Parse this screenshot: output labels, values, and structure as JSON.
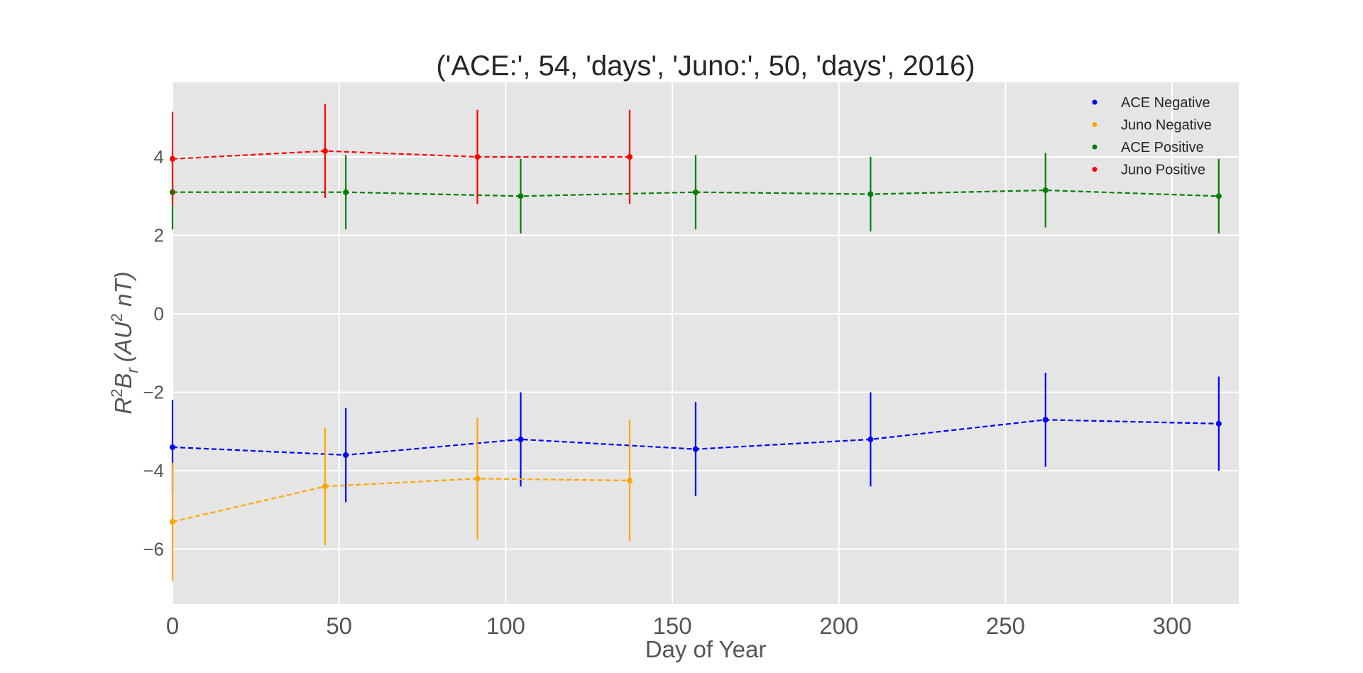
{
  "chart_data": {
    "type": "line",
    "title": "('ACE:', 54, 'days', 'Juno:', 50, 'days', 2016)",
    "xlabel": "Day of Year",
    "ylabel": "R²Bᵣ (AU² nT)",
    "ylabel_parts": {
      "r": "R",
      "b": "B",
      "sub": "r",
      "open": "(AU",
      "close": " nT)",
      "sup": "2"
    },
    "xlim": [
      0,
      320
    ],
    "ylim": [
      -7.4,
      5.9
    ],
    "x_ticks": [
      0,
      50,
      100,
      150,
      200,
      250,
      300
    ],
    "x_tick_labels": [
      "0",
      "50",
      "100",
      "150",
      "200",
      "250",
      "300"
    ],
    "y_ticks": [
      -6,
      -4,
      -2,
      0,
      2,
      4
    ],
    "y_tick_labels": [
      "−6",
      "−4",
      "−2",
      "0",
      "2",
      "4"
    ],
    "grid": true,
    "legend_position": "top-right",
    "series": [
      {
        "name": "ACE Negative",
        "color": "#0000ff",
        "x": [
          0,
          52,
          104.5,
          157,
          209.5,
          262,
          314
        ],
        "y": [
          -3.4,
          -3.6,
          -3.2,
          -3.45,
          -3.2,
          -2.7,
          -2.8
        ],
        "err": [
          1.2,
          1.2,
          1.2,
          1.2,
          1.2,
          1.2,
          1.2
        ]
      },
      {
        "name": "Juno Negative",
        "color": "#ffa500",
        "x": [
          0,
          45.8,
          91.5,
          137.2
        ],
        "y": [
          -5.3,
          -4.4,
          -4.2,
          -4.25
        ],
        "err": [
          1.5,
          1.5,
          1.55,
          1.55
        ]
      },
      {
        "name": "ACE Positive",
        "color": "#008000",
        "x": [
          0,
          52,
          104.5,
          157,
          209.5,
          262,
          314
        ],
        "y": [
          3.1,
          3.1,
          3.0,
          3.1,
          3.05,
          3.15,
          3.0
        ],
        "err": [
          0.95,
          0.95,
          0.95,
          0.95,
          0.95,
          0.95,
          0.95
        ]
      },
      {
        "name": "Juno Positive",
        "color": "#ff0000",
        "x": [
          0,
          45.8,
          91.5,
          137.2
        ],
        "y": [
          3.95,
          4.15,
          4.0,
          4.0
        ],
        "err": [
          1.2,
          1.2,
          1.2,
          1.2
        ]
      }
    ]
  }
}
